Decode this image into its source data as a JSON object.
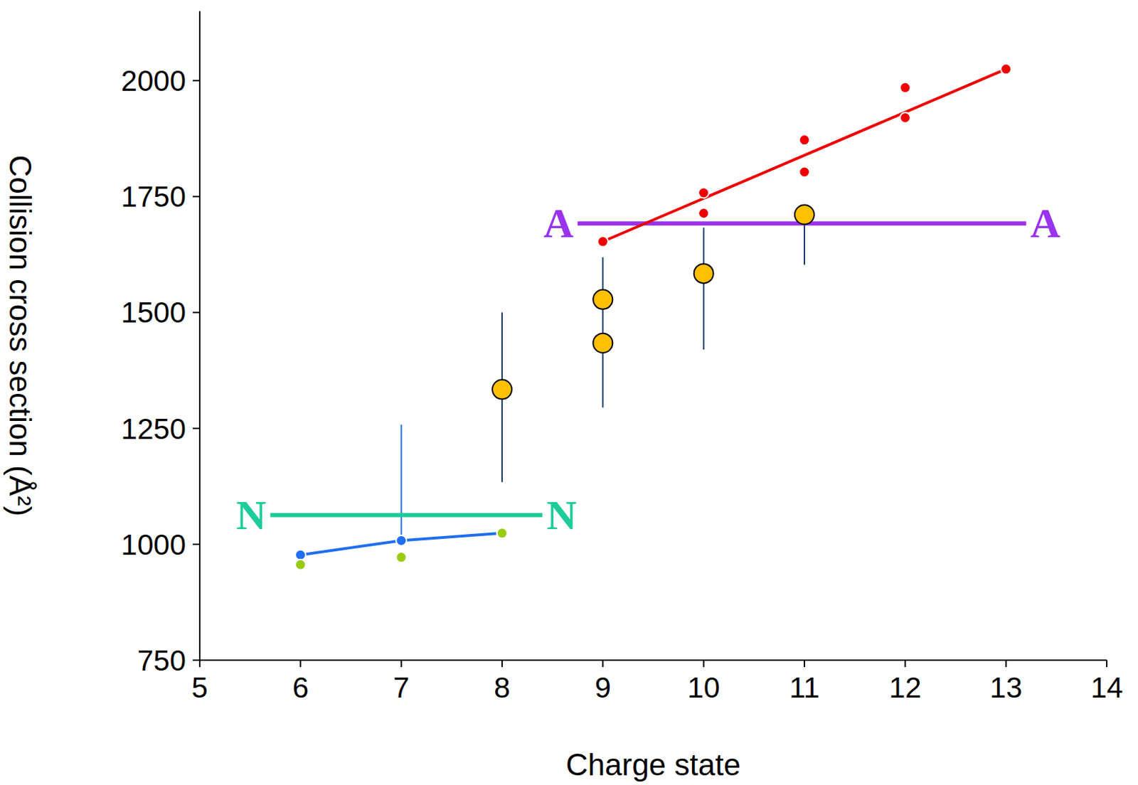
{
  "chart_data": {
    "type": "scatter",
    "x_label": "Charge state",
    "y_label": "Collision cross section (Å²)",
    "xlim": [
      5,
      14
    ],
    "xticks": [
      5,
      6,
      7,
      8,
      9,
      10,
      11,
      12,
      13,
      14
    ],
    "ylim": [
      750,
      2150
    ],
    "yticks": [
      750,
      1000,
      1250,
      1500,
      1750,
      2000
    ],
    "grid": false,
    "series": [
      {
        "type": "reference",
        "label": "N",
        "color": "#1ecc99",
        "marker": "text",
        "x": [
          5.7,
          8.4
        ],
        "values": [
          1063,
          1063
        ]
      },
      {
        "type": "reference",
        "label": "A",
        "color": "#9933ee",
        "marker": "text",
        "x": [
          8.75,
          13.2
        ],
        "values": [
          1692,
          1692
        ]
      },
      {
        "type": "line",
        "color": "#1f6ff0",
        "marker": "circle",
        "x": [
          6,
          7,
          8
        ],
        "values": [
          977,
          1008,
          1024
        ],
        "errors": [
          [
            0,
            0
          ],
          [
            0,
            250
          ],
          [
            0,
            0
          ]
        ]
      },
      {
        "type": "scatter",
        "color": "#99cc11",
        "marker": "circle",
        "x": [
          6,
          7,
          8
        ],
        "values": [
          956,
          972,
          1024
        ]
      },
      {
        "type": "line",
        "color": "#ee0000",
        "marker": "none",
        "x": [
          9,
          13
        ],
        "values": [
          1653,
          2025
        ]
      },
      {
        "type": "scatter",
        "color": "#ee0000",
        "marker": "circle",
        "x": [
          9,
          10,
          10,
          11,
          11,
          12,
          12,
          13
        ],
        "values": [
          1653,
          1758,
          1714,
          1872,
          1803,
          1985,
          1920,
          2025
        ]
      },
      {
        "type": "scatter",
        "color": "#ffc000",
        "marker": "large_circle",
        "x": [
          8,
          9,
          9,
          10,
          11
        ],
        "values": [
          1334,
          1528,
          1434,
          1584,
          1711
        ],
        "errors": [
          [
            200,
            166
          ],
          [
            0,
            0
          ],
          [
            139,
            185
          ],
          [
            164,
            99
          ],
          [
            108,
            0
          ]
        ]
      }
    ]
  }
}
